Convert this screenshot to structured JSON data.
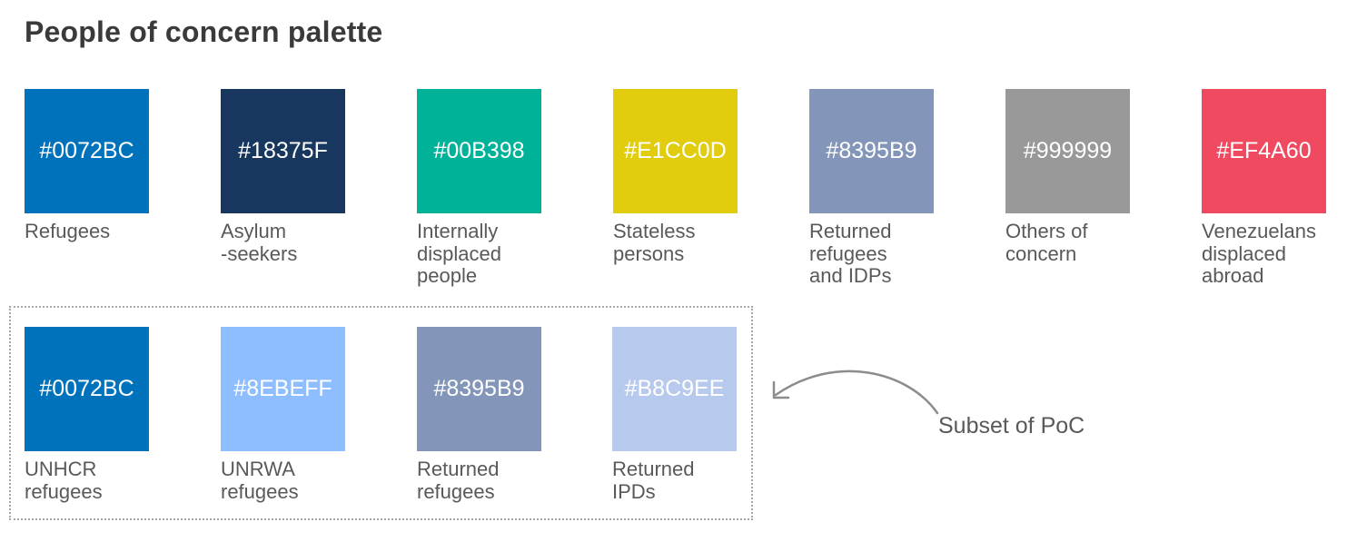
{
  "title": "People of concern palette",
  "row1": [
    {
      "hex": "#0072BC",
      "color": "#0072BC",
      "label": "Refugees"
    },
    {
      "hex": "#18375F",
      "color": "#18375F",
      "label": "Asylum\n-seekers"
    },
    {
      "hex": "#00B398",
      "color": "#00B398",
      "label": "Internally\ndisplaced\npeople"
    },
    {
      "hex": "#E1CC0D",
      "color": "#E1CC0D",
      "label": "Stateless\npersons"
    },
    {
      "hex": "#8395B9",
      "color": "#8395B9",
      "label": "Returned\nrefugees\nand IDPs"
    },
    {
      "hex": "#999999",
      "color": "#999999",
      "label": "Others of\nconcern"
    },
    {
      "hex": "#EF4A60",
      "color": "#EF4A60",
      "label": "Venezuelans\ndisplaced\nabroad"
    }
  ],
  "row2": [
    {
      "hex": "#0072BC",
      "color": "#0072BC",
      "label": "UNHCR\nrefugees"
    },
    {
      "hex": "#8EBEFF",
      "color": "#8EBEFF",
      "label": "UNRWA\nrefugees"
    },
    {
      "hex": "#8395B9",
      "color": "#8395B9",
      "label": "Returned\nrefugees"
    },
    {
      "hex": "#B8C9EE",
      "color": "#B8C9EE",
      "label": "Returned\nIPDs"
    }
  ],
  "annotation": "Subset of PoC",
  "colors": {
    "text": "#595959",
    "title": "#3a3a3a",
    "border": "#a6a6a6",
    "arrow": "#8c8c8c"
  }
}
